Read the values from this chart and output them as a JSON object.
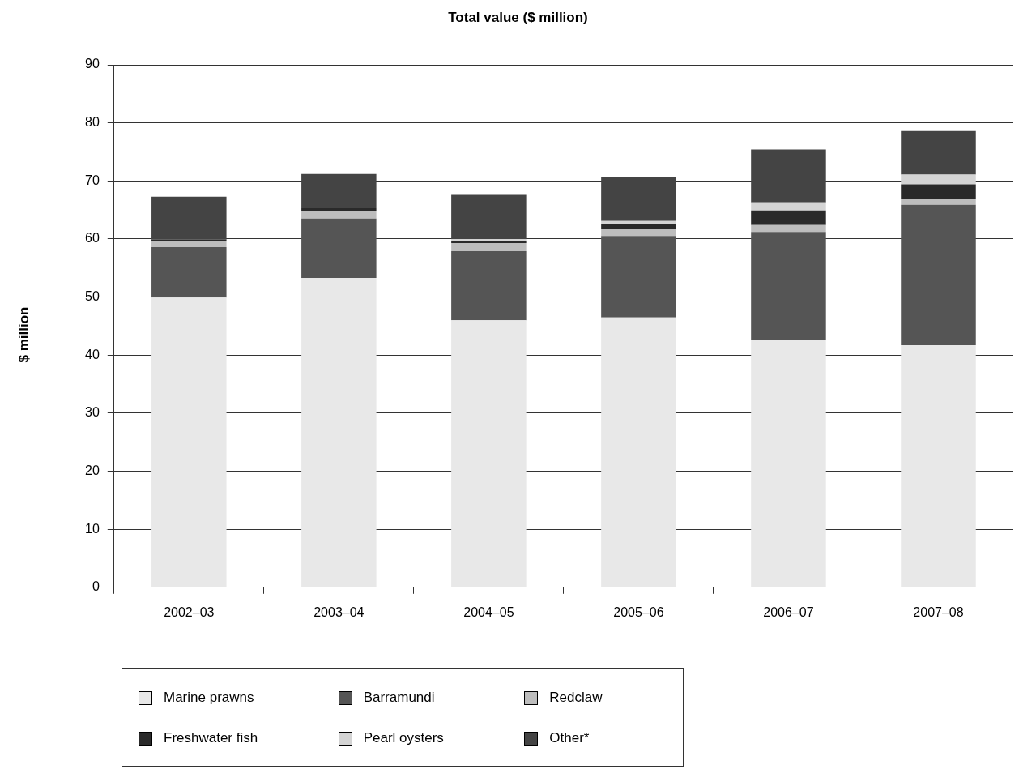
{
  "chart_data": {
    "type": "bar",
    "title": "Total value ($ million)",
    "ylabel": "$ million",
    "stacked": true,
    "categories": [
      "2002–03",
      "2003–04",
      "2004–05",
      "2005–06",
      "2006–07",
      "2007–08"
    ],
    "series": [
      {
        "name": "Marine prawns",
        "color": "#e8e8e8",
        "values": [
          49.9,
          53.3,
          46.0,
          46.5,
          42.6,
          41.7
        ]
      },
      {
        "name": "Barramundi",
        "color": "#555555",
        "values": [
          8.7,
          10.2,
          11.9,
          14.0,
          18.6,
          24.2
        ]
      },
      {
        "name": "Redclaw",
        "color": "#bdbdbd",
        "values": [
          1.0,
          1.3,
          1.4,
          1.3,
          1.2,
          1.0
        ]
      },
      {
        "name": "Freshwater fish",
        "color": "#2a2a2a",
        "values": [
          0.3,
          0.5,
          0.4,
          0.7,
          2.5,
          2.5
        ]
      },
      {
        "name": "Pearl oysters",
        "color": "#d4d4d4",
        "values": [
          null,
          null,
          0.3,
          0.6,
          1.4,
          1.7
        ]
      },
      {
        "name": "Other*",
        "color": "#444444",
        "values": [
          7.4,
          5.9,
          7.6,
          7.5,
          9.1,
          7.5
        ]
      }
    ],
    "ylim": [
      0,
      90
    ],
    "yticks": [
      0,
      10,
      20,
      30,
      40,
      50,
      60,
      70,
      80,
      90
    ],
    "grid": "y",
    "legend": "bottom"
  }
}
